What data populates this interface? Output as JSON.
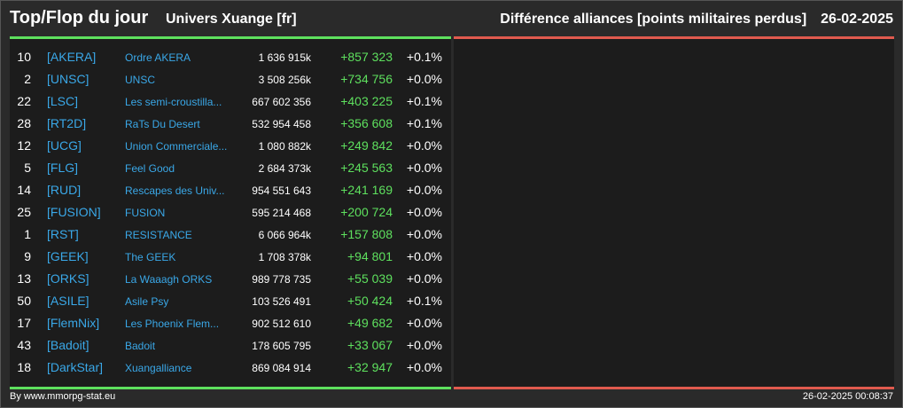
{
  "header": {
    "title": "Top/Flop du jour",
    "subtitle": "Univers Xuange [fr]",
    "right_title": "Différence alliances [points militaires perdus]",
    "date": "26-02-2025"
  },
  "colors": {
    "accent_green": "#5ee05e",
    "accent_red": "#e05a4e",
    "link_blue": "#3aa8e8"
  },
  "rows": [
    {
      "rank": "10",
      "tag": "[AKERA]",
      "name": "Ordre AKERA",
      "points": "1 636 915k",
      "diff": "+857 323",
      "pct": "+0.1%"
    },
    {
      "rank": "2",
      "tag": "[UNSC]",
      "name": "UNSC",
      "points": "3 508 256k",
      "diff": "+734 756",
      "pct": "+0.0%"
    },
    {
      "rank": "22",
      "tag": "[LSC]",
      "name": "Les semi-croustilla...",
      "points": "667 602 356",
      "diff": "+403 225",
      "pct": "+0.1%"
    },
    {
      "rank": "28",
      "tag": "[RT2D]",
      "name": "RaTs Du Desert",
      "points": "532 954 458",
      "diff": "+356 608",
      "pct": "+0.1%"
    },
    {
      "rank": "12",
      "tag": "[UCG]",
      "name": "Union Commerciale...",
      "points": "1 080 882k",
      "diff": "+249 842",
      "pct": "+0.0%"
    },
    {
      "rank": "5",
      "tag": "[FLG]",
      "name": "Feel Good",
      "points": "2 684 373k",
      "diff": "+245 563",
      "pct": "+0.0%"
    },
    {
      "rank": "14",
      "tag": "[RUD]",
      "name": "Rescapes des Univ...",
      "points": "954 551 643",
      "diff": "+241 169",
      "pct": "+0.0%"
    },
    {
      "rank": "25",
      "tag": "[FUSION]",
      "name": "FUSION",
      "points": "595 214 468",
      "diff": "+200 724",
      "pct": "+0.0%"
    },
    {
      "rank": "1",
      "tag": "[RST]",
      "name": "RESISTANCE",
      "points": "6 066 964k",
      "diff": "+157 808",
      "pct": "+0.0%"
    },
    {
      "rank": "9",
      "tag": "[GEEK]",
      "name": "The GEEK",
      "points": "1 708 378k",
      "diff": "+94 801",
      "pct": "+0.0%"
    },
    {
      "rank": "13",
      "tag": "[ORKS]",
      "name": "La Waaagh ORKS",
      "points": "989 778 735",
      "diff": "+55 039",
      "pct": "+0.0%"
    },
    {
      "rank": "50",
      "tag": "[ASILE]",
      "name": "Asile Psy",
      "points": "103 526 491",
      "diff": "+50 424",
      "pct": "+0.1%"
    },
    {
      "rank": "17",
      "tag": "[FlemNix]",
      "name": "Les Phoenix Flem...",
      "points": "902 512 610",
      "diff": "+49 682",
      "pct": "+0.0%"
    },
    {
      "rank": "43",
      "tag": "[Badoit]",
      "name": "Badoit",
      "points": "178 605 795",
      "diff": "+33 067",
      "pct": "+0.0%"
    },
    {
      "rank": "18",
      "tag": "[DarkStar]",
      "name": "Xuangalliance",
      "points": "869 084 914",
      "diff": "+32 947",
      "pct": "+0.0%"
    }
  ],
  "footer": {
    "source": "By www.mmorpg-stat.eu",
    "timestamp": "26-02-2025 00:08:37"
  }
}
